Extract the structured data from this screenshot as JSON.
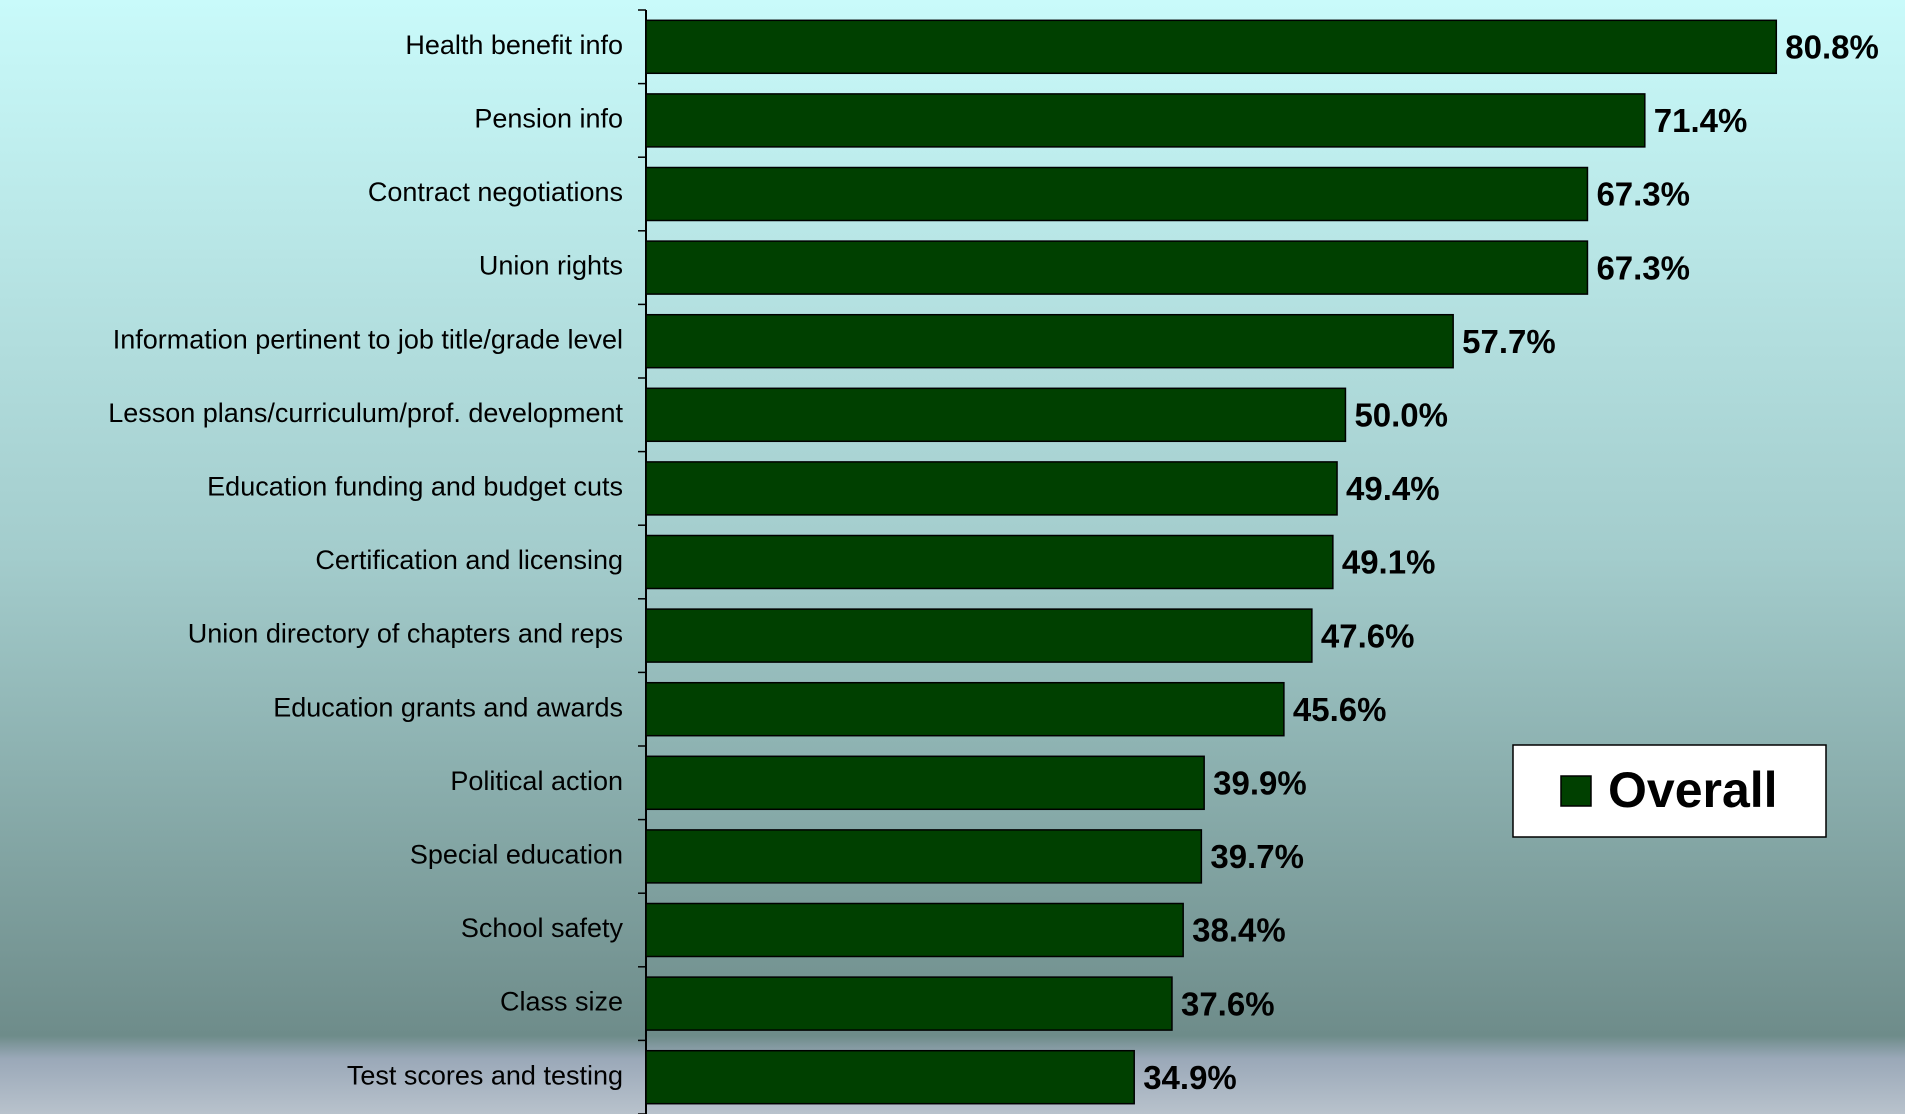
{
  "chart_data": {
    "type": "bar",
    "orientation": "horizontal",
    "categories": [
      "Health benefit info",
      "Pension info",
      "Contract negotiations",
      "Union rights",
      "Information pertinent to job title/grade level",
      "Lesson plans/curriculum/prof. development",
      "Education funding and budget cuts",
      "Certification and licensing",
      "Union directory of chapters and reps",
      "Education grants and awards",
      "Political action",
      "Special education",
      "School safety",
      "Class size",
      "Test scores and testing"
    ],
    "series": [
      {
        "name": "Overall",
        "color": "#004000",
        "values": [
          80.8,
          71.4,
          67.3,
          67.3,
          57.7,
          50.0,
          49.4,
          49.1,
          47.6,
          45.6,
          39.9,
          39.7,
          38.4,
          37.6,
          34.9
        ],
        "value_labels": [
          "80.8%",
          "71.4%",
          "67.3%",
          "67.3%",
          "57.7%",
          "50.0%",
          "49.4%",
          "49.1%",
          "47.6%",
          "45.6%",
          "39.9%",
          "39.7%",
          "38.4%",
          "37.6%",
          "34.9%"
        ]
      }
    ],
    "xlim": [
      0,
      90
    ],
    "legend": "right"
  }
}
